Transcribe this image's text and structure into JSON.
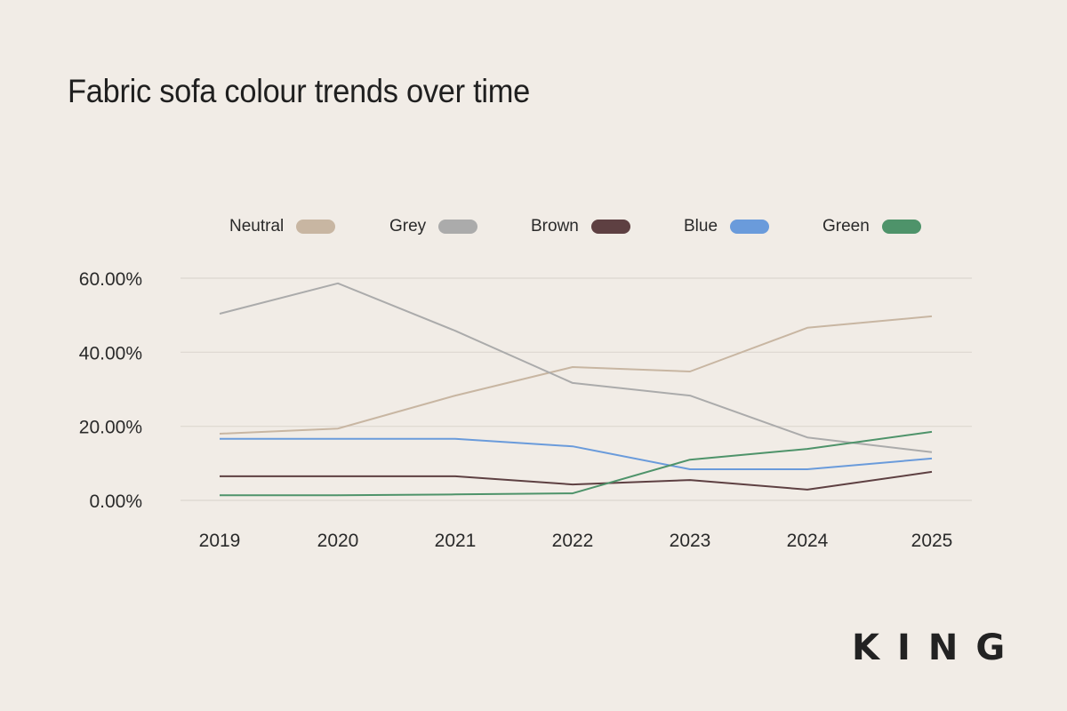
{
  "title": "Fabric sofa colour trends over time",
  "logo": "KING",
  "legend": [
    {
      "label": "Neutral",
      "color": "#C8B6A2"
    },
    {
      "label": "Grey",
      "color": "#ABABAB"
    },
    {
      "label": "Brown",
      "color": "#5E4042"
    },
    {
      "label": "Blue",
      "color": "#6A9BDB"
    },
    {
      "label": "Green",
      "color": "#4E936A"
    }
  ],
  "chart_data": {
    "type": "line",
    "title": "Fabric sofa colour trends over time",
    "xlabel": "",
    "ylabel": "",
    "categories": [
      "2019",
      "2020",
      "2021",
      "2022",
      "2023",
      "2024",
      "2025"
    ],
    "y_ticks": [
      "0.00%",
      "20.00%",
      "40.00%",
      "60.00%"
    ],
    "ylim": [
      0,
      60
    ],
    "grid": true,
    "legend_position": "top",
    "series": [
      {
        "name": "Neutral",
        "color": "#C8B6A2",
        "values": [
          18.0,
          19.4,
          28.3,
          36.0,
          34.8,
          46.6,
          49.7
        ]
      },
      {
        "name": "Grey",
        "color": "#ABABAB",
        "values": [
          50.4,
          58.6,
          45.8,
          31.7,
          28.3,
          17.0,
          13.0
        ]
      },
      {
        "name": "Brown",
        "color": "#5E4042",
        "values": [
          6.5,
          6.5,
          6.5,
          4.3,
          5.5,
          2.9,
          7.7
        ]
      },
      {
        "name": "Blue",
        "color": "#6A9BDB",
        "values": [
          16.6,
          16.6,
          16.6,
          14.6,
          8.4,
          8.4,
          11.3
        ]
      },
      {
        "name": "Green",
        "color": "#4E936A",
        "values": [
          1.4,
          1.4,
          1.6,
          1.9,
          11.0,
          13.9,
          18.5
        ]
      }
    ]
  }
}
